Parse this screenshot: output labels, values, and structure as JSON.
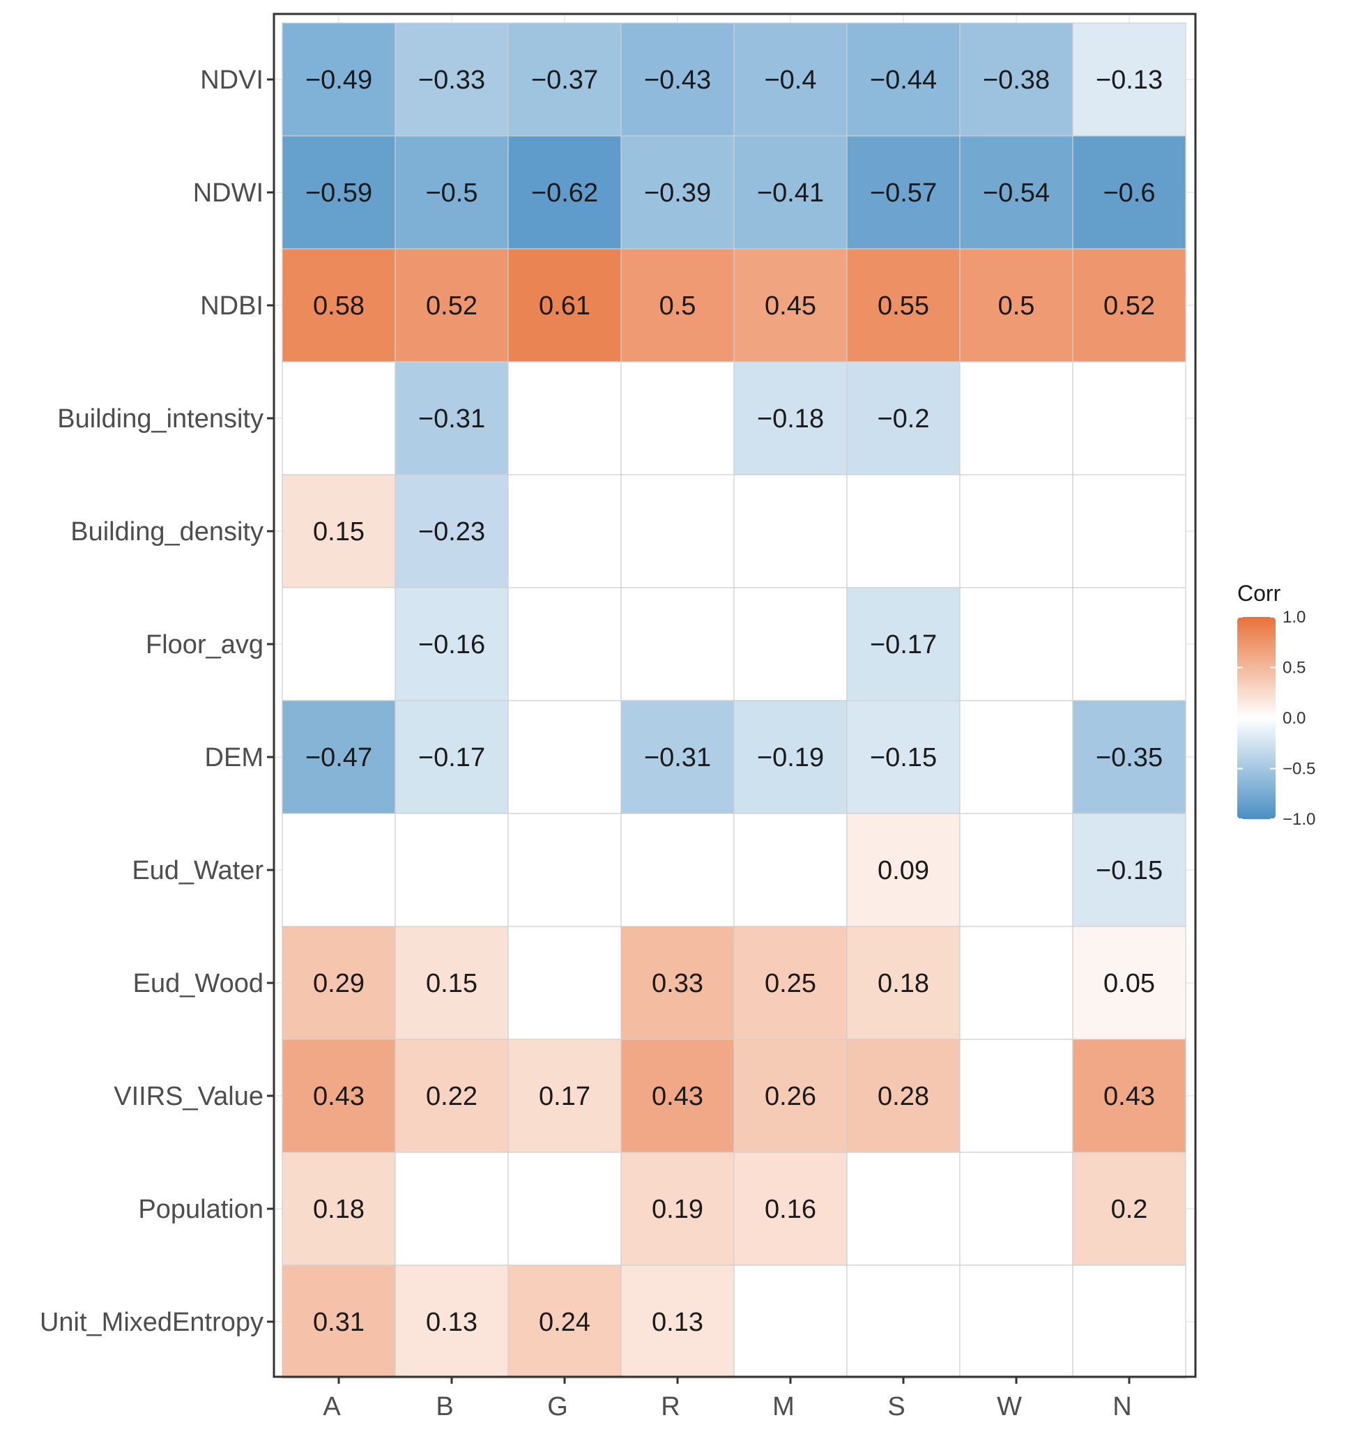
{
  "colors": {
    "negative": "#4a8fc4",
    "neutral": "#ffffff",
    "positive": "#e8723a",
    "border": "#333333",
    "grid": "#e8e8e8",
    "tile_border": "#cfcfcf"
  },
  "chart_data": {
    "type": "heatmap",
    "title": "",
    "xlabel": "",
    "ylabel": "",
    "x": [
      "A",
      "B",
      "G",
      "R",
      "M",
      "S",
      "W",
      "N"
    ],
    "y": [
      "NDVI",
      "NDWI",
      "NDBI",
      "Building_intensity",
      "Building_density",
      "Floor_avg",
      "DEM",
      "Eud_Water",
      "Eud_Wood",
      "VIIRS_Value",
      "Population",
      "Unit_MixedEntropy"
    ],
    "values": [
      [
        -0.49,
        -0.33,
        -0.37,
        -0.43,
        -0.4,
        -0.44,
        -0.38,
        -0.13
      ],
      [
        -0.59,
        -0.5,
        -0.62,
        -0.39,
        -0.41,
        -0.57,
        -0.54,
        -0.6
      ],
      [
        0.58,
        0.52,
        0.61,
        0.5,
        0.45,
        0.55,
        0.5,
        0.52
      ],
      [
        null,
        -0.31,
        null,
        null,
        -0.18,
        -0.2,
        null,
        null
      ],
      [
        0.15,
        -0.23,
        null,
        null,
        null,
        null,
        null,
        null
      ],
      [
        null,
        -0.16,
        null,
        null,
        null,
        -0.17,
        null,
        null
      ],
      [
        -0.47,
        -0.17,
        null,
        -0.31,
        -0.19,
        -0.15,
        null,
        -0.35
      ],
      [
        null,
        null,
        null,
        null,
        null,
        0.09,
        null,
        -0.15
      ],
      [
        0.29,
        0.15,
        null,
        0.33,
        0.25,
        0.18,
        null,
        0.05
      ],
      [
        0.43,
        0.22,
        0.17,
        0.43,
        0.26,
        0.28,
        null,
        0.43
      ],
      [
        0.18,
        null,
        null,
        0.19,
        0.16,
        null,
        null,
        0.2
      ],
      [
        0.31,
        0.13,
        0.24,
        0.13,
        null,
        null,
        null,
        null
      ]
    ],
    "value_labels": [
      [
        "−0.49",
        "−0.33",
        "−0.37",
        "−0.43",
        "−0.4",
        "−0.44",
        "−0.38",
        "−0.13"
      ],
      [
        "−0.59",
        "−0.5",
        "−0.62",
        "−0.39",
        "−0.41",
        "−0.57",
        "−0.54",
        "−0.6"
      ],
      [
        "0.58",
        "0.52",
        "0.61",
        "0.5",
        "0.45",
        "0.55",
        "0.5",
        "0.52"
      ],
      [
        null,
        "−0.31",
        null,
        null,
        "−0.18",
        "−0.2",
        null,
        null
      ],
      [
        "0.15",
        "−0.23",
        null,
        null,
        null,
        null,
        null,
        null
      ],
      [
        null,
        "−0.16",
        null,
        null,
        null,
        "−0.17",
        null,
        null
      ],
      [
        "−0.47",
        "−0.17",
        null,
        "−0.31",
        "−0.19",
        "−0.15",
        null,
        "−0.35"
      ],
      [
        null,
        null,
        null,
        null,
        null,
        "0.09",
        null,
        "−0.15"
      ],
      [
        "0.29",
        "0.15",
        null,
        "0.33",
        "0.25",
        "0.18",
        null,
        "0.05"
      ],
      [
        "0.43",
        "0.22",
        "0.17",
        "0.43",
        "0.26",
        "0.28",
        null,
        "0.43"
      ],
      [
        "0.18",
        null,
        null,
        "0.19",
        "0.16",
        null,
        null,
        "0.2"
      ],
      [
        "0.31",
        "0.13",
        "0.24",
        "0.13",
        null,
        null,
        null,
        null
      ]
    ],
    "legend": {
      "title": "Corr",
      "range": [
        -1.0,
        1.0
      ],
      "ticks": [
        1.0,
        0.5,
        0.0,
        -0.5,
        -1.0
      ],
      "tick_labels": [
        "1.0",
        "0.5",
        "0.0",
        "−0.5",
        "−1.0"
      ],
      "placement": "right"
    }
  }
}
